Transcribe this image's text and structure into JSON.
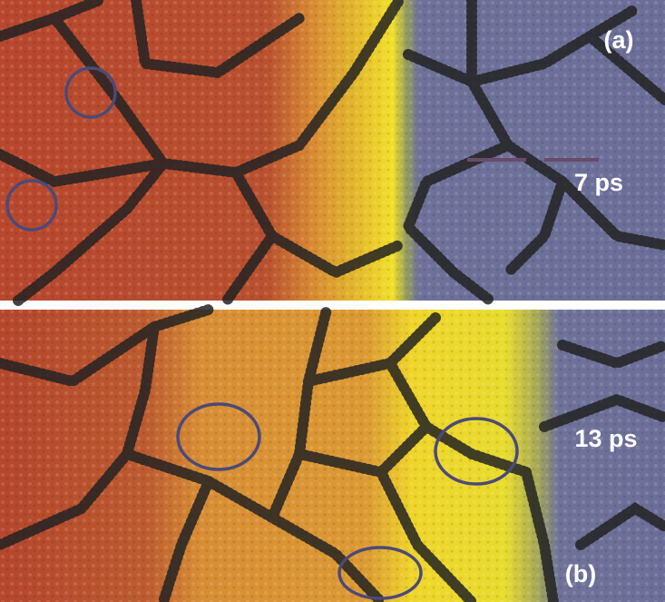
{
  "panels": [
    {
      "label": "(a)",
      "time": "7 ps"
    },
    {
      "label": "(b)",
      "time": "13 ps"
    }
  ]
}
